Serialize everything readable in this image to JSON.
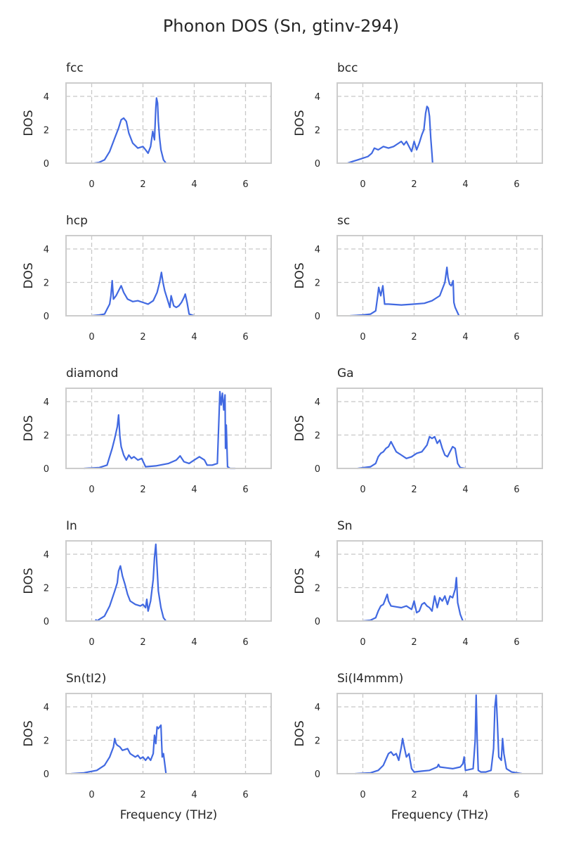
{
  "figure": {
    "title": "Phonon DOS (Sn, gtinv-294)"
  },
  "chart_data": [
    {
      "type": "line",
      "title": "fcc",
      "ylabel": "DOS",
      "xlabel": "",
      "xlim": [
        -1,
        7
      ],
      "ylim": [
        0,
        4.8
      ],
      "xticks": [
        0,
        2,
        4,
        6
      ],
      "yticks": [
        0,
        2,
        4
      ],
      "grid": true,
      "series": [
        {
          "x": [
            0.1,
            0.3,
            0.5,
            0.7,
            0.9,
            1.05,
            1.15,
            1.25,
            1.35,
            1.45,
            1.6,
            1.8,
            2.0,
            2.1,
            2.2,
            2.3,
            2.38,
            2.45,
            2.5,
            2.53,
            2.57,
            2.6,
            2.65,
            2.7,
            2.8,
            2.9
          ],
          "y": [
            0.0,
            0.05,
            0.2,
            0.7,
            1.5,
            2.1,
            2.6,
            2.7,
            2.5,
            1.8,
            1.2,
            0.9,
            1.0,
            0.8,
            0.6,
            1.0,
            1.9,
            1.4,
            3.3,
            3.9,
            3.6,
            2.5,
            1.5,
            0.8,
            0.2,
            0.0
          ]
        }
      ]
    },
    {
      "type": "line",
      "title": "bcc",
      "ylabel": "DOS",
      "xlabel": "",
      "xlim": [
        -1,
        7
      ],
      "ylim": [
        0,
        4.8
      ],
      "xticks": [
        0,
        2,
        4,
        6
      ],
      "yticks": [
        0,
        2,
        4
      ],
      "grid": true,
      "series": [
        {
          "x": [
            -0.6,
            -0.4,
            -0.2,
            0.0,
            0.2,
            0.35,
            0.45,
            0.6,
            0.8,
            1.0,
            1.2,
            1.4,
            1.5,
            1.6,
            1.7,
            1.8,
            1.9,
            2.0,
            2.1,
            2.2,
            2.3,
            2.38,
            2.45,
            2.5,
            2.55,
            2.6,
            2.65,
            2.7,
            2.72
          ],
          "y": [
            0.0,
            0.1,
            0.2,
            0.3,
            0.4,
            0.6,
            0.9,
            0.8,
            1.0,
            0.9,
            1.0,
            1.2,
            1.3,
            1.1,
            1.3,
            1.0,
            0.7,
            1.3,
            0.8,
            1.2,
            1.7,
            2.0,
            3.0,
            3.4,
            3.3,
            2.8,
            1.5,
            0.5,
            0.0
          ]
        }
      ]
    },
    {
      "type": "line",
      "title": "hcp",
      "ylabel": "DOS",
      "xlabel": "",
      "xlim": [
        -1,
        7
      ],
      "ylim": [
        0,
        4.8
      ],
      "xticks": [
        0,
        2,
        4,
        6
      ],
      "yticks": [
        0,
        2,
        4
      ],
      "grid": true,
      "series": [
        {
          "x": [
            0.0,
            0.3,
            0.5,
            0.6,
            0.7,
            0.75,
            0.8,
            0.85,
            0.95,
            1.05,
            1.15,
            1.25,
            1.4,
            1.6,
            1.8,
            2.0,
            2.2,
            2.4,
            2.55,
            2.65,
            2.72,
            2.78,
            2.85,
            2.95,
            3.05,
            3.1,
            3.2,
            3.3,
            3.4,
            3.5,
            3.6,
            3.65,
            3.72,
            3.8,
            4.0
          ],
          "y": [
            0.0,
            0.05,
            0.1,
            0.4,
            0.7,
            1.2,
            2.1,
            1.0,
            1.2,
            1.5,
            1.8,
            1.4,
            1.0,
            0.85,
            0.9,
            0.8,
            0.7,
            0.9,
            1.4,
            2.0,
            2.6,
            2.0,
            1.5,
            1.0,
            0.5,
            1.2,
            0.6,
            0.5,
            0.6,
            0.8,
            1.1,
            1.3,
            0.8,
            0.1,
            0.0
          ]
        }
      ]
    },
    {
      "type": "line",
      "title": "sc",
      "ylabel": "DOS",
      "xlabel": "",
      "xlim": [
        -1,
        7
      ],
      "ylim": [
        0,
        4.8
      ],
      "xticks": [
        0,
        2,
        4,
        6
      ],
      "yticks": [
        0,
        2,
        4
      ],
      "grid": true,
      "series": [
        {
          "x": [
            -0.5,
            0.0,
            0.3,
            0.5,
            0.58,
            0.62,
            0.7,
            0.78,
            0.85,
            1.0,
            1.5,
            2.0,
            2.4,
            2.7,
            3.0,
            3.2,
            3.28,
            3.32,
            3.38,
            3.45,
            3.52,
            3.55,
            3.6,
            3.75
          ],
          "y": [
            0.0,
            0.05,
            0.1,
            0.3,
            1.2,
            1.7,
            1.2,
            1.8,
            0.7,
            0.7,
            0.65,
            0.7,
            0.75,
            0.9,
            1.2,
            2.0,
            2.9,
            2.3,
            1.9,
            1.8,
            2.1,
            0.8,
            0.5,
            0.0
          ]
        }
      ]
    },
    {
      "type": "line",
      "title": "diamond",
      "ylabel": "DOS",
      "xlabel": "",
      "xlim": [
        -1,
        7
      ],
      "ylim": [
        0,
        4.8
      ],
      "xticks": [
        0,
        2,
        4,
        6
      ],
      "yticks": [
        0,
        2,
        4
      ],
      "grid": true,
      "series": [
        {
          "x": [
            -0.3,
            0.3,
            0.6,
            0.8,
            0.9,
            1.0,
            1.05,
            1.1,
            1.15,
            1.25,
            1.35,
            1.45,
            1.55,
            1.65,
            1.8,
            1.95,
            2.1,
            2.5,
            3.0,
            3.3,
            3.45,
            3.6,
            3.8,
            4.0,
            4.2,
            4.4,
            4.5,
            4.7,
            4.9,
            5.0,
            5.05,
            5.1,
            5.15,
            5.2,
            5.22,
            5.25,
            5.3,
            5.4,
            5.6
          ],
          "y": [
            0.0,
            0.05,
            0.2,
            1.2,
            1.8,
            2.5,
            3.2,
            1.9,
            1.3,
            0.8,
            0.5,
            0.8,
            0.6,
            0.7,
            0.5,
            0.6,
            0.1,
            0.15,
            0.3,
            0.5,
            0.75,
            0.4,
            0.3,
            0.5,
            0.7,
            0.5,
            0.2,
            0.2,
            0.3,
            4.6,
            3.8,
            4.5,
            3.5,
            4.4,
            1.2,
            2.6,
            0.1,
            0.0,
            0.0
          ]
        }
      ]
    },
    {
      "type": "line",
      "title": "Ga",
      "ylabel": "DOS",
      "xlabel": "",
      "xlim": [
        -1,
        7
      ],
      "ylim": [
        0,
        4.8
      ],
      "xticks": [
        0,
        2,
        4,
        6
      ],
      "yticks": [
        0,
        2,
        4
      ],
      "grid": true,
      "series": [
        {
          "x": [
            -0.2,
            0.3,
            0.5,
            0.6,
            0.7,
            0.8,
            0.9,
            1.0,
            1.1,
            1.2,
            1.3,
            1.5,
            1.7,
            1.9,
            2.1,
            2.3,
            2.5,
            2.6,
            2.7,
            2.8,
            2.9,
            3.0,
            3.1,
            3.2,
            3.3,
            3.4,
            3.5,
            3.6,
            3.7,
            3.8,
            4.0
          ],
          "y": [
            0.0,
            0.1,
            0.3,
            0.7,
            0.9,
            1.0,
            1.2,
            1.3,
            1.6,
            1.3,
            1.0,
            0.8,
            0.6,
            0.7,
            0.9,
            1.0,
            1.4,
            1.9,
            1.8,
            1.9,
            1.5,
            1.7,
            1.2,
            0.8,
            0.7,
            1.0,
            1.3,
            1.2,
            0.3,
            0.05,
            0.0
          ]
        }
      ]
    },
    {
      "type": "line",
      "title": "In",
      "ylabel": "DOS",
      "xlabel": "",
      "xlim": [
        -1,
        7
      ],
      "ylim": [
        0,
        4.8
      ],
      "xticks": [
        0,
        2,
        4,
        6
      ],
      "yticks": [
        0,
        2,
        4
      ],
      "grid": true,
      "series": [
        {
          "x": [
            0.15,
            0.2,
            0.3,
            0.5,
            0.7,
            0.9,
            1.0,
            1.05,
            1.12,
            1.2,
            1.3,
            1.4,
            1.5,
            1.7,
            1.9,
            2.0,
            2.1,
            2.15,
            2.2,
            2.3,
            2.4,
            2.45,
            2.5,
            2.55,
            2.6,
            2.7,
            2.8,
            2.9
          ],
          "y": [
            0.1,
            0.0,
            0.1,
            0.3,
            0.9,
            1.8,
            2.3,
            3.0,
            3.3,
            2.7,
            2.2,
            1.6,
            1.2,
            1.0,
            0.9,
            1.0,
            0.8,
            1.3,
            0.6,
            1.2,
            2.5,
            3.8,
            4.6,
            3.2,
            1.8,
            0.8,
            0.2,
            0.0
          ]
        }
      ]
    },
    {
      "type": "line",
      "title": "Sn",
      "ylabel": "DOS",
      "xlabel": "",
      "xlim": [
        -1,
        7
      ],
      "ylim": [
        0,
        4.8
      ],
      "xticks": [
        0,
        2,
        4,
        6
      ],
      "yticks": [
        0,
        2,
        4
      ],
      "grid": true,
      "series": [
        {
          "x": [
            0.0,
            0.3,
            0.5,
            0.6,
            0.7,
            0.8,
            0.9,
            0.95,
            1.0,
            1.1,
            1.3,
            1.5,
            1.7,
            1.9,
            2.0,
            2.1,
            2.2,
            2.3,
            2.4,
            2.5,
            2.6,
            2.7,
            2.8,
            2.9,
            3.0,
            3.1,
            3.2,
            3.3,
            3.4,
            3.5,
            3.6,
            3.65,
            3.7,
            3.8,
            3.9
          ],
          "y": [
            0.0,
            0.05,
            0.2,
            0.6,
            0.9,
            1.0,
            1.4,
            1.6,
            1.2,
            0.9,
            0.85,
            0.8,
            0.9,
            0.7,
            1.2,
            0.5,
            0.6,
            1.0,
            1.1,
            0.9,
            0.8,
            0.6,
            1.5,
            0.8,
            1.4,
            1.2,
            1.5,
            1.0,
            1.5,
            1.4,
            1.9,
            2.6,
            1.1,
            0.4,
            0.0
          ]
        }
      ]
    },
    {
      "type": "line",
      "title": "Sn(tI2)",
      "ylabel": "DOS",
      "xlabel": "Frequency (THz)",
      "xlim": [
        -1,
        7
      ],
      "ylim": [
        0,
        4.8
      ],
      "xticks": [
        0,
        2,
        4,
        6
      ],
      "yticks": [
        0,
        2,
        4
      ],
      "grid": true,
      "series": [
        {
          "x": [
            -0.8,
            -0.3,
            0.2,
            0.5,
            0.7,
            0.85,
            0.9,
            0.95,
            1.0,
            1.1,
            1.2,
            1.4,
            1.5,
            1.7,
            1.8,
            1.9,
            2.0,
            2.1,
            2.2,
            2.3,
            2.4,
            2.45,
            2.5,
            2.55,
            2.6,
            2.7,
            2.75,
            2.8,
            2.9
          ],
          "y": [
            0.0,
            0.05,
            0.2,
            0.5,
            1.0,
            1.6,
            2.1,
            1.8,
            1.7,
            1.6,
            1.4,
            1.5,
            1.2,
            1.0,
            1.1,
            0.9,
            1.0,
            0.8,
            1.0,
            0.8,
            1.2,
            2.3,
            1.8,
            2.8,
            2.7,
            2.9,
            1.0,
            1.2,
            0.0
          ]
        }
      ]
    },
    {
      "type": "line",
      "title": "Si(I4mmm)",
      "ylabel": "DOS",
      "xlabel": "Frequency (THz)",
      "xlim": [
        -1,
        7
      ],
      "ylim": [
        0,
        4.8
      ],
      "xticks": [
        0,
        2,
        4,
        6
      ],
      "yticks": [
        0,
        2,
        4
      ],
      "grid": true,
      "series": [
        {
          "x": [
            -0.3,
            0.3,
            0.6,
            0.8,
            1.0,
            1.1,
            1.2,
            1.3,
            1.4,
            1.5,
            1.55,
            1.6,
            1.7,
            1.8,
            1.9,
            2.0,
            2.3,
            2.6,
            2.9,
            2.95,
            3.0,
            3.5,
            3.8,
            3.9,
            3.95,
            4.0,
            4.3,
            4.38,
            4.42,
            4.46,
            4.5,
            4.6,
            4.8,
            5.0,
            5.1,
            5.15,
            5.2,
            5.25,
            5.3,
            5.4,
            5.45,
            5.5,
            5.6,
            5.8,
            6.0,
            6.2
          ],
          "y": [
            0.0,
            0.05,
            0.2,
            0.5,
            1.2,
            1.3,
            1.1,
            1.2,
            0.8,
            1.6,
            2.1,
            1.7,
            1.0,
            1.2,
            0.3,
            0.1,
            0.15,
            0.2,
            0.4,
            0.55,
            0.4,
            0.3,
            0.4,
            0.6,
            1.0,
            0.2,
            0.3,
            2.0,
            4.7,
            2.0,
            0.2,
            0.1,
            0.1,
            0.2,
            1.5,
            4.0,
            4.7,
            3.0,
            1.0,
            0.8,
            2.1,
            1.2,
            0.3,
            0.1,
            0.05,
            0.0
          ]
        }
      ]
    }
  ]
}
